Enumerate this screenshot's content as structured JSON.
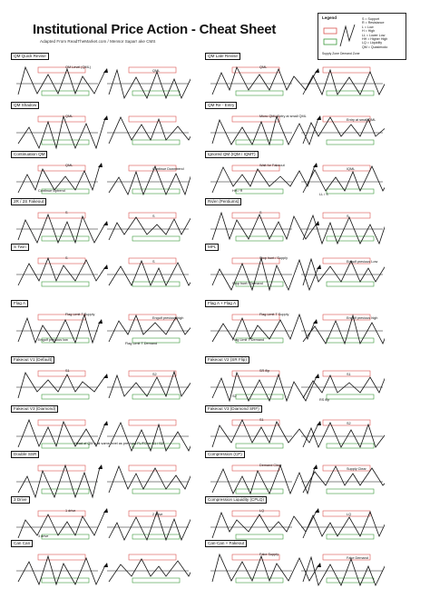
{
  "title": "Institutional Price Action - Cheat Sheet",
  "subtitle": "Adapted From ReadTheMarket.com / Mensor Sapar! ake CMS",
  "legend": {
    "title": "Legend",
    "items": [
      "S = Support",
      "R = Resistance",
      "L = Low",
      "H = High",
      "LL = Lower Low",
      "HH = Higher High",
      "LQ = Liquidity",
      "QM = Quasimodo"
    ],
    "footer": "Supply Zone   Demand Zone"
  },
  "colors": {
    "supply": "#d9534f",
    "demand": "#3a9a3a",
    "line": "#111111"
  },
  "sections": [
    {
      "tag": "QM Quick Revise",
      "caps": [
        "QM Level (QML)",
        "QML"
      ]
    },
    {
      "tag": "QM Late Revise",
      "caps": [
        "QML"
      ]
    },
    {
      "tag": "QM Shadow",
      "caps": [
        "QML"
      ]
    },
    {
      "tag": "QM Re - Entry",
      "caps": [
        "Micro QML Entry at small QML",
        "Entry at small QML"
      ]
    },
    {
      "tag": "Continuation QM",
      "caps": [
        "QML",
        "Continue Downtrend",
        "Continue Uptrend"
      ]
    },
    {
      "tag": "Ignored QM (IQM / IQMT)",
      "caps": [
        "Wait for Fakeout",
        "IQML",
        "HH / R",
        "LL / S"
      ]
    },
    {
      "tag": "2R / 2S Fakeout",
      "caps": [
        "S",
        "S"
      ]
    },
    {
      "tag": "Rs/er (Pentiums)",
      "caps": [
        "S",
        "S"
      ]
    },
    {
      "tag": "S Twin",
      "caps": [
        "S",
        "S"
      ]
    },
    {
      "tag": "MPL",
      "caps": [
        "Stop hunt / Supply",
        "Engulf previous Low",
        "Stop hunt / Demand"
      ]
    },
    {
      "tag": "Flag A",
      "caps": [
        "Flag Limit T Supply",
        "Engulf previous high",
        "Engulf previous low",
        "Flag Limit T Demand"
      ]
    },
    {
      "tag": "Flag A + Flag A",
      "caps": [
        "Flag Limit T Supply",
        "Engulf previous high",
        "Flag Limit T Demand"
      ]
    },
    {
      "tag": "Fakeout V1 (Default)",
      "caps": [
        "S1",
        "S2"
      ]
    },
    {
      "tag": "Fakeout V2 (SR Flip)",
      "caps": [
        "SR flip",
        "S1",
        "S2",
        "RS flip"
      ]
    },
    {
      "tag": "Fakeout V3 (Diamond)",
      "caps": [
        "Head of QM is at same level as previous FL/FO or S1 / S2"
      ]
    },
    {
      "tag": "Fakeout V3 (Diamond SRF)",
      "caps": [
        "S1",
        "S2"
      ]
    },
    {
      "tag": "Double SSR",
      "caps": []
    },
    {
      "tag": "Compression (CP)",
      "caps": [
        "Demand Clear",
        "Supply Clear"
      ]
    },
    {
      "tag": "3 Drive",
      "caps": [
        "1 drive",
        "2 drive",
        "3 drive"
      ]
    },
    {
      "tag": "Compression Liquidity (CPLQ)",
      "caps": [
        "LQ",
        "LQ"
      ]
    },
    {
      "tag": "Can Can",
      "caps": []
    },
    {
      "tag": "Can-Can + Fakeout",
      "caps": [
        "Fake Supply",
        "Fake Demand"
      ]
    }
  ]
}
